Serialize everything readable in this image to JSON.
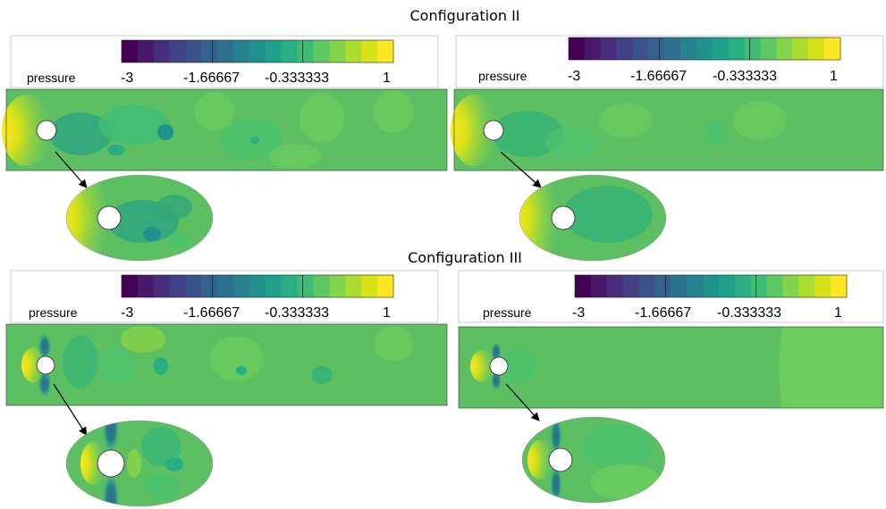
{
  "titles": [
    "Configuration II",
    "Configuration III"
  ],
  "colorbar": {
    "name": "pressure",
    "tick_labels": [
      "-3",
      "-1.66667",
      "-0.333333",
      "1"
    ],
    "range": [
      -3,
      1
    ]
  },
  "arrow_label": "",
  "colors": {
    "viridis": [
      "#440154",
      "#48186a",
      "#472d7b",
      "#424086",
      "#3b528b",
      "#33638d",
      "#2c728e",
      "#26828e",
      "#21918c",
      "#1fa088",
      "#28ae80",
      "#3fbc73",
      "#5ec962",
      "#84d44b",
      "#addc30",
      "#d8e219",
      "#fde725"
    ],
    "flow_background": "#5cc063",
    "stagnation": "#f2e028"
  },
  "panels": [
    {
      "name": "config-ii-case-a"
    },
    {
      "name": "config-ii-case-b"
    },
    {
      "name": "config-iii-case-a"
    },
    {
      "name": "config-iii-case-b"
    }
  ]
}
